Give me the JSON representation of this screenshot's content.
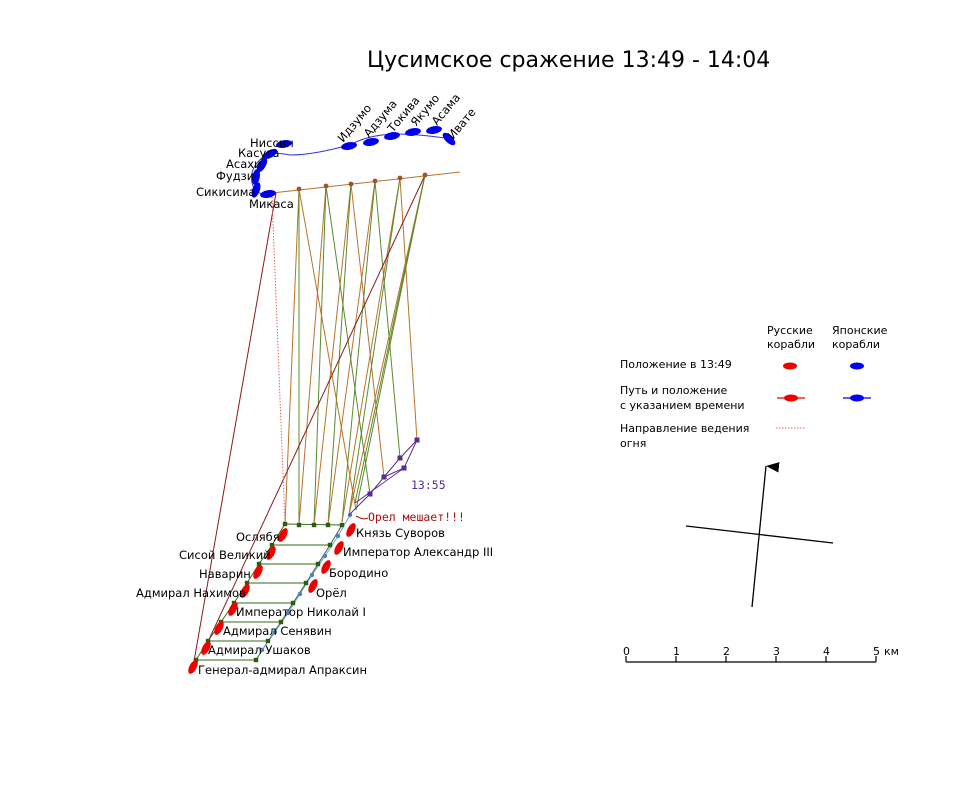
{
  "title": "Цусимское сражение 13:49 - 14:04",
  "colors": {
    "russian": "#ee0000",
    "japanese": "#0000ee",
    "japanese_path": "#3333dd",
    "fire_jp_a": "#b8742a",
    "fire_jp_b": "#5b8a2c",
    "fire_ru": "#8b1a1a",
    "fire_dotted": "#e06a5a",
    "russian_track": "#3a6a1a",
    "track_marker": "#2e5d12",
    "orel_path": "#5a2d91",
    "orel_marker": "#5a2d91",
    "annot_red": "#aa1111"
  },
  "japanese_ships": [
    "Ниссин",
    "Касуга",
    "Асахи",
    "Фудзи",
    "Сикисима",
    "Микаса",
    "Идзумо",
    "Адзума",
    "Токива",
    "Якумо",
    "Асама",
    "Ивате"
  ],
  "russian_ships": [
    "Ослябя",
    "Князь Суворов",
    "Сисой Великий",
    "Император Александр III",
    "Наварин",
    "Бородино",
    "Адмирал Нахимов",
    "Орёл",
    "Император Николай I",
    "Адмирал Сенявин",
    "Адмирал Ушаков",
    "Генерал-адмирал Апраксин"
  ],
  "annotations": {
    "time_1355": "13:55",
    "orel_blocks": "Орел мешает!!!"
  },
  "legend": {
    "col_russian": [
      "Русские",
      "корабли"
    ],
    "col_japanese": [
      "Японские",
      "корабли"
    ],
    "position_1349": "Положение в 13:49",
    "path_position": [
      "Путь и положение",
      "с указанием времени"
    ],
    "fire_direction": [
      "Направление ведения",
      "огня"
    ]
  },
  "scale": {
    "ticks": [
      "0",
      "1",
      "2",
      "3",
      "4",
      "5"
    ],
    "unit": "км"
  },
  "icons": [
    "compass-icon",
    "north-arrow-icon"
  ]
}
